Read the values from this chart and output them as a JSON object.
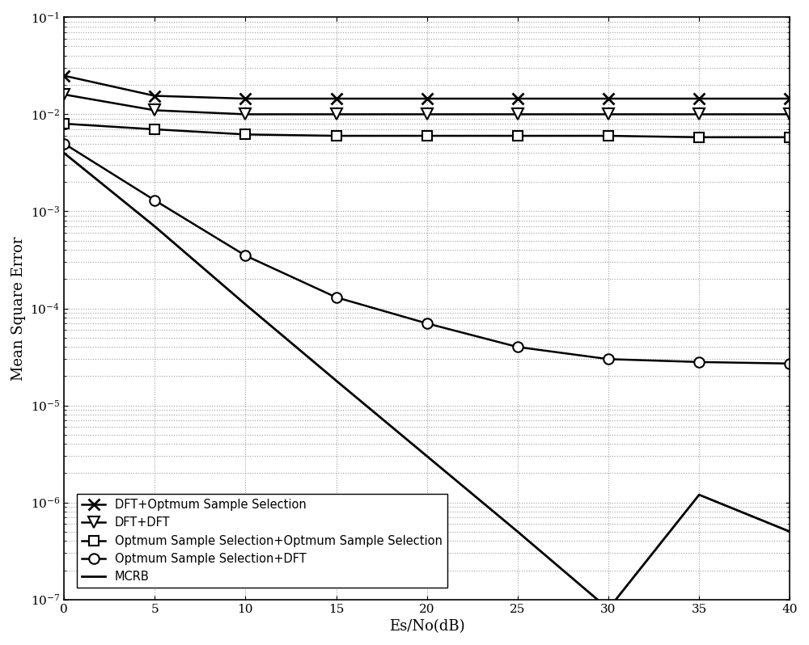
{
  "x": [
    0,
    5,
    10,
    15,
    20,
    25,
    30,
    35,
    40
  ],
  "series_order": [
    "DFT+Optmum Sample Selection",
    "DFT+DFT",
    "Optmum Sample Selection+Optmum Sample Selection",
    "Optmum Sample Selection+DFT",
    "MCRB"
  ],
  "series": {
    "DFT+Optmum Sample Selection": {
      "y": [
        0.025,
        0.0155,
        0.0145,
        0.0145,
        0.0145,
        0.0145,
        0.0145,
        0.0145,
        0.0145
      ],
      "marker": "x",
      "markersize": 10,
      "linewidth": 1.8,
      "color": "#000000",
      "markerfacecolor": "black",
      "markeredgecolor": "black",
      "markeredgewidth": 2
    },
    "DFT+DFT": {
      "y": [
        0.016,
        0.011,
        0.01,
        0.01,
        0.01,
        0.01,
        0.01,
        0.01,
        0.01
      ],
      "marker": "v",
      "markersize": 10,
      "linewidth": 1.8,
      "color": "#000000",
      "markerfacecolor": "white",
      "markeredgecolor": "black",
      "markeredgewidth": 1.5
    },
    "Optmum Sample Selection+Optmum Sample Selection": {
      "y": [
        0.008,
        0.007,
        0.0062,
        0.006,
        0.006,
        0.006,
        0.006,
        0.0058,
        0.0058
      ],
      "marker": "s",
      "markersize": 9,
      "linewidth": 1.8,
      "color": "#000000",
      "markerfacecolor": "white",
      "markeredgecolor": "black",
      "markeredgewidth": 1.5
    },
    "Optmum Sample Selection+DFT": {
      "y": [
        0.005,
        0.0013,
        0.00035,
        0.00013,
        7e-05,
        4e-05,
        3e-05,
        2.8e-05,
        2.7e-05
      ],
      "marker": "o",
      "markersize": 9,
      "linewidth": 1.8,
      "color": "#000000",
      "markerfacecolor": "white",
      "markeredgecolor": "black",
      "markeredgewidth": 1.5
    },
    "MCRB": {
      "y": [
        0.004,
        0.0007,
        0.00011,
        1.8e-05,
        3e-06,
        5e-07,
        8e-08,
        1.2e-06,
        5e-07
      ],
      "marker": null,
      "markersize": 0,
      "linewidth": 2.0,
      "color": "#000000",
      "markerfacecolor": "black",
      "markeredgecolor": "black",
      "markeredgewidth": 1
    }
  },
  "xlabel": "Es/No(dB)",
  "ylabel": "Mean Square Error",
  "xlim": [
    0,
    40
  ],
  "ylim": [
    1e-07,
    0.1
  ],
  "xticks": [
    0,
    5,
    10,
    15,
    20,
    25,
    30,
    35,
    40
  ],
  "background_color": "#ffffff",
  "grid": true,
  "legend_loc": "lower left",
  "legend_fontsize": 10.5,
  "axis_fontsize": 13,
  "tick_fontsize": 11
}
